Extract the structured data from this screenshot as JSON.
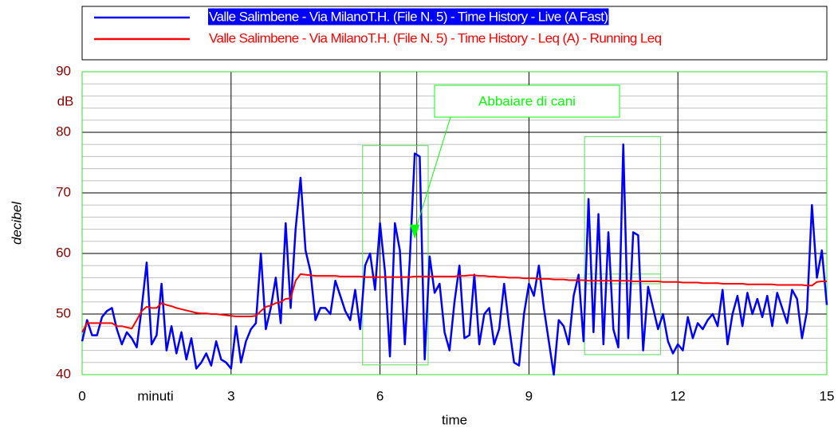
{
  "chart_data": {
    "type": "line",
    "x_label": "time",
    "y_label": "decibel",
    "x_unit": "minuti",
    "y_unit": "dB",
    "xlim": [
      0,
      15
    ],
    "xticks": [
      0,
      3,
      6,
      9,
      12,
      15
    ],
    "ylim": [
      40,
      90
    ],
    "yticks": [
      40,
      50,
      60,
      70,
      80,
      90
    ],
    "minor_yticks": [
      42,
      44,
      46,
      48,
      52,
      54,
      56,
      58,
      62,
      64,
      66,
      68,
      72,
      74,
      76,
      78,
      82,
      84,
      86,
      88
    ],
    "cursor_x": 6.74,
    "grid": true,
    "annotation": {
      "text": "Abbaiare di cani",
      "x": 6.7,
      "y": 62.4,
      "color": "#00ff00"
    },
    "regions": [
      {
        "x": [
          5.65,
          6.97
        ],
        "y": [
          41.6,
          77.8
        ]
      },
      {
        "x": [
          10.12,
          11.65
        ],
        "y": [
          43.3,
          79.3
        ]
      },
      {
        "x": [
          10.12,
          11.65
        ],
        "y": [
          55.0,
          56.6
        ]
      }
    ],
    "x": [
      0,
      0.1,
      0.2,
      0.3,
      0.4,
      0.5,
      0.6,
      0.7,
      0.8,
      0.9,
      1,
      1.1,
      1.2,
      1.3,
      1.4,
      1.5,
      1.6,
      1.7,
      1.8,
      1.9,
      2,
      2.1,
      2.2,
      2.3,
      2.4,
      2.5,
      2.6,
      2.7,
      2.8,
      2.9,
      3,
      3.1,
      3.2,
      3.3,
      3.4,
      3.5,
      3.6,
      3.7,
      3.8,
      3.9,
      4,
      4.1,
      4.2,
      4.3,
      4.4,
      4.5,
      4.6,
      4.7,
      4.8,
      4.9,
      5,
      5.1,
      5.2,
      5.3,
      5.4,
      5.5,
      5.6,
      5.7,
      5.8,
      5.9,
      6,
      6.1,
      6.2,
      6.3,
      6.4,
      6.5,
      6.6,
      6.7,
      6.8,
      6.9,
      7,
      7.1,
      7.2,
      7.3,
      7.4,
      7.5,
      7.6,
      7.7,
      7.8,
      7.9,
      8,
      8.1,
      8.2,
      8.3,
      8.4,
      8.5,
      8.6,
      8.7,
      8.8,
      8.9,
      9,
      9.1,
      9.2,
      9.3,
      9.4,
      9.5,
      9.6,
      9.7,
      9.8,
      9.9,
      10,
      10.1,
      10.2,
      10.3,
      10.4,
      10.5,
      10.6,
      10.7,
      10.8,
      10.9,
      11,
      11.1,
      11.2,
      11.3,
      11.4,
      11.5,
      11.6,
      11.7,
      11.8,
      11.9,
      12,
      12.1,
      12.2,
      12.3,
      12.4,
      12.5,
      12.6,
      12.7,
      12.8,
      12.9,
      13,
      13.1,
      13.2,
      13.3,
      13.4,
      13.5,
      13.6,
      13.7,
      13.8,
      13.9,
      14,
      14.1,
      14.2,
      14.3,
      14.4,
      14.5,
      14.6,
      14.7,
      14.8,
      14.9,
      15
    ],
    "series": [
      {
        "name": "Valle Salimbene - Via MilanoT.H. (File N. 5) - Time History - Live (A Fast)",
        "color": "#0000ff",
        "values": [
          45.5,
          49,
          46.5,
          46.5,
          49.5,
          50.5,
          51,
          47.5,
          45,
          47,
          46,
          44.5,
          51,
          58.5,
          45,
          46.5,
          55,
          44,
          48,
          43.5,
          47,
          42.5,
          46,
          41,
          42,
          43.5,
          41.5,
          45.5,
          42.5,
          42,
          41,
          48,
          42,
          45.5,
          47.5,
          48.5,
          60,
          47.5,
          51,
          56,
          48.5,
          65,
          51,
          64,
          72.5,
          60.5,
          57,
          49,
          51,
          51,
          50,
          55.5,
          53,
          50.5,
          49,
          54,
          47.5,
          58,
          60,
          54,
          65,
          57,
          43,
          65,
          60.5,
          45,
          59,
          76.5,
          76,
          42.5,
          59.5,
          53.5,
          55,
          47,
          44,
          52,
          58,
          46,
          46.5,
          56.5,
          45,
          50,
          51,
          45,
          47.5,
          55,
          48,
          42,
          41.5,
          50,
          55,
          53,
          58,
          51,
          45.5,
          40,
          49,
          48,
          45,
          53,
          56.5,
          45.5,
          69,
          47,
          66.5,
          45,
          63.5,
          47.5,
          44.5,
          78,
          46,
          63.5,
          63,
          44,
          54.5,
          51,
          47.5,
          50,
          45.5,
          43.5,
          45,
          44,
          49.5,
          46,
          48.5,
          47.5,
          49,
          50,
          48,
          54,
          45,
          50,
          53,
          48,
          53.5,
          50,
          52.5,
          49.5,
          53,
          48,
          53.5,
          51,
          48.5,
          54,
          52.5,
          46,
          50.5,
          68,
          56,
          60.5,
          51.5
        ]
      },
      {
        "name": "Valle Salimbene - Via MilanoT.H. (File N. 5) - Time History - Leq (A) - Running Leq",
        "color": "#ff0000",
        "values": [
          47,
          48.5,
          48.5,
          48.5,
          48.5,
          48.5,
          48.5,
          48,
          48,
          47.8,
          47.6,
          49,
          50.5,
          51.2,
          51,
          51,
          51.8,
          51.5,
          51.3,
          51,
          50.8,
          50.6,
          50.4,
          50.2,
          50.1,
          50.1,
          50,
          50,
          49.9,
          49.8,
          49.7,
          49.6,
          49.6,
          49.6,
          49.6,
          49.7,
          50.5,
          51.2,
          51.4,
          51.8,
          52,
          52.5,
          52.6,
          55.5,
          56.6,
          56.5,
          56.4,
          56.3,
          56.3,
          56.3,
          56.3,
          56.3,
          56.2,
          56.2,
          56.2,
          56.2,
          56.2,
          56.1,
          56.1,
          56.1,
          56.1,
          56.1,
          56.1,
          56.1,
          56.1,
          56.1,
          56.1,
          56.2,
          56.2,
          56.2,
          56.2,
          56.2,
          56.2,
          56.2,
          56.2,
          56.2,
          56.3,
          56.3,
          56.4,
          56.4,
          56.3,
          56.3,
          56.2,
          56.2,
          56.1,
          56.1,
          56,
          56,
          56,
          55.9,
          55.9,
          55.9,
          55.8,
          55.8,
          55.8,
          55.7,
          55.7,
          55.7,
          55.6,
          55.6,
          55.6,
          55.6,
          55.5,
          55.5,
          55.5,
          55.5,
          55.5,
          55.5,
          55.5,
          55.5,
          55.5,
          55.4,
          55.4,
          55.4,
          55.4,
          55.4,
          55.4,
          55.3,
          55.3,
          55.3,
          55.3,
          55.2,
          55.2,
          55.2,
          55.2,
          55.1,
          55.1,
          55.1,
          55.1,
          55,
          55,
          55,
          55,
          55,
          54.9,
          54.9,
          54.9,
          54.9,
          54.9,
          54.9,
          54.8,
          54.8,
          54.8,
          54.8,
          54.8,
          54.8,
          54.7,
          54.7,
          55.3,
          55.4,
          55.4
        ]
      }
    ]
  }
}
